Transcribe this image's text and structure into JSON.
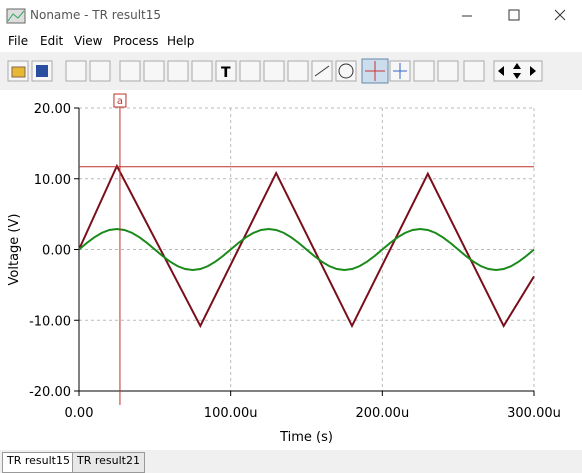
{
  "window": {
    "title": "Noname - TR result15",
    "menu": [
      "File",
      "Edit",
      "View",
      "Process",
      "Help"
    ],
    "tabs": [
      "TR result15",
      "TR result21"
    ]
  },
  "chart_data": {
    "type": "line",
    "x_label": "Time (s)",
    "y_label": "Voltage (V)",
    "xlim": [
      0,
      300
    ],
    "ylim": [
      -20,
      20
    ],
    "xticks": [
      {
        "value": 0,
        "label": "0.00"
      },
      {
        "value": 100,
        "label": "100.00u"
      },
      {
        "value": 200,
        "label": "200.00u"
      },
      {
        "value": 300,
        "label": "300.00u"
      }
    ],
    "yticks": [
      {
        "value": 20,
        "label": "20.00"
      },
      {
        "value": 10,
        "label": "10.00"
      },
      {
        "value": 0,
        "label": "0.00"
      },
      {
        "value": -10,
        "label": "-10.00"
      },
      {
        "value": -20,
        "label": "-20.00"
      }
    ],
    "grid": true,
    "cursor": {
      "label": "a",
      "x": 27,
      "y": 11.7,
      "color": "#c0302a"
    },
    "series": [
      {
        "color": "#7a0f1c",
        "x": [
          0,
          25,
          80,
          130,
          180,
          230,
          280,
          300
        ],
        "values": [
          0,
          11.8,
          -10.8,
          10.8,
          -10.8,
          10.7,
          -10.8,
          -3.8
        ]
      },
      {
        "color": "#1a8a1a",
        "x": [
          0,
          5,
          10,
          15,
          20,
          25,
          30,
          35,
          40,
          45,
          50,
          55,
          60,
          65,
          70,
          75,
          80,
          85,
          90,
          95,
          100,
          105,
          110,
          115,
          120,
          125,
          130,
          135,
          140,
          145,
          150,
          155,
          160,
          165,
          170,
          175,
          180,
          185,
          190,
          195,
          200,
          205,
          210,
          215,
          220,
          225,
          230,
          235,
          240,
          245,
          250,
          255,
          260,
          265,
          270,
          275,
          280,
          285,
          290,
          295,
          300
        ],
        "values": [
          0,
          0.9,
          1.71,
          2.35,
          2.76,
          2.9,
          2.76,
          2.35,
          1.71,
          0.9,
          0,
          -0.9,
          -1.71,
          -2.35,
          -2.76,
          -2.9,
          -2.76,
          -2.35,
          -1.71,
          -0.9,
          0,
          0.9,
          1.71,
          2.35,
          2.76,
          2.9,
          2.76,
          2.35,
          1.71,
          0.9,
          0,
          -0.9,
          -1.71,
          -2.35,
          -2.76,
          -2.9,
          -2.76,
          -2.35,
          -1.71,
          -0.9,
          0,
          0.9,
          1.71,
          2.35,
          2.76,
          2.9,
          2.76,
          2.35,
          1.71,
          0.9,
          0,
          -0.9,
          -1.71,
          -2.35,
          -2.76,
          -2.9,
          -2.76,
          -2.35,
          -1.71,
          -0.9,
          0
        ]
      }
    ]
  }
}
